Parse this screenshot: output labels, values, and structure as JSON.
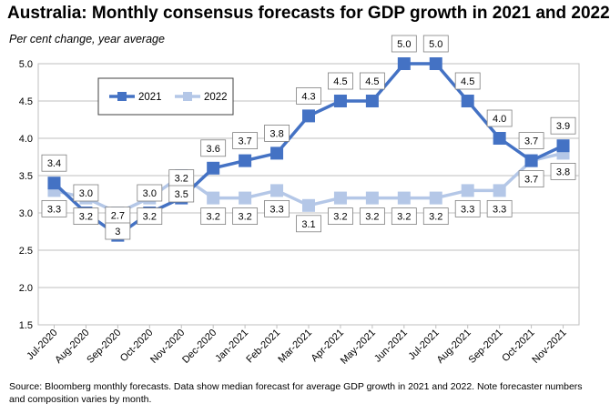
{
  "header": {
    "title": "Australia: Monthly consensus forecasts for GDP growth in 2021 and 2022",
    "subtitle": "Per cent change, year average"
  },
  "footer": {
    "note": "Source: Bloomberg monthly forecasts.  Data show median forecast for average GDP growth in 2021 and 2022.  Note forecaster numbers and composition varies by month."
  },
  "chart_data": {
    "type": "line",
    "categories": [
      "Jul-2020",
      "Aug-2020",
      "Sep-2020",
      "Oct-2020",
      "Nov-2020",
      "Dec-2020",
      "Jan-2021",
      "Feb-2021",
      "Mar-2021",
      "Apr-2021",
      "May-2021",
      "Jun-2021",
      "Jul-2021",
      "Aug-2021",
      "Sep-2021",
      "Oct-2021",
      "Nov-2021"
    ],
    "series": [
      {
        "name": "2021",
        "color": "#4472C4",
        "values": [
          3.4,
          3.0,
          2.7,
          3.0,
          3.2,
          3.6,
          3.7,
          3.8,
          4.3,
          4.5,
          4.5,
          5.0,
          5.0,
          4.5,
          4.0,
          3.7,
          3.9
        ],
        "labels": [
          "3.4",
          "3.0",
          "2.7",
          "3.0",
          "3.2",
          "3.6",
          "3.7",
          "3.8",
          "4.3",
          "4.5",
          "4.5",
          "5.0",
          "5.0",
          "4.5",
          "4.0",
          "3.7",
          "3.9"
        ]
      },
      {
        "name": "2022",
        "color": "#B4C7E7",
        "values": [
          3.3,
          3.2,
          3.0,
          3.2,
          3.5,
          3.2,
          3.2,
          3.3,
          3.1,
          3.2,
          3.2,
          3.2,
          3.2,
          3.3,
          3.3,
          3.7,
          3.8
        ],
        "labels": [
          "3.3",
          "3.2",
          "3",
          "3.2",
          "3.5",
          "3.2",
          "3.2",
          "3.3",
          "3.1",
          "3.2",
          "3.2",
          "3.2",
          "3.2",
          "3.3",
          "3.3",
          "3.7",
          "3.8"
        ]
      }
    ],
    "yticks": [
      "1.5",
      "2.0",
      "2.5",
      "3.0",
      "3.5",
      "4.0",
      "4.5",
      "5.0"
    ],
    "ylim": [
      1.5,
      5.0
    ],
    "grid": true,
    "legend_position": "top-left",
    "xlabel": "",
    "ylabel": ""
  }
}
